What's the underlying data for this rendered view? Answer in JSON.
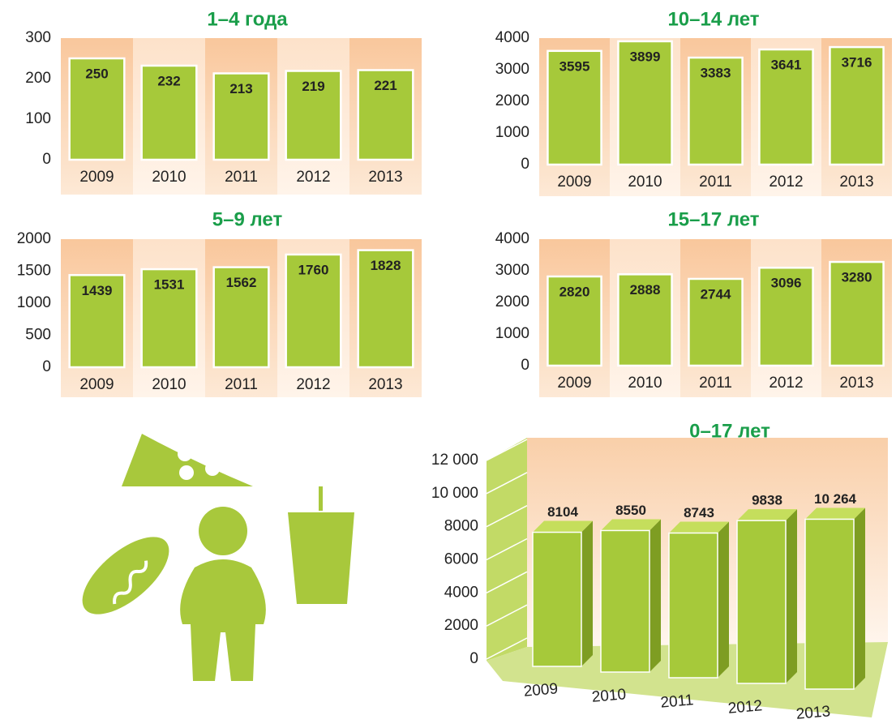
{
  "chart_data": [
    {
      "type": "bar",
      "title": "1–4 года",
      "categories": [
        "2009",
        "2010",
        "2011",
        "2012",
        "2013"
      ],
      "values": [
        250,
        232,
        213,
        219,
        221
      ],
      "color": "#a6c93a",
      "ylim": [
        0,
        300
      ],
      "yticks": [
        0,
        100,
        200,
        300
      ]
    },
    {
      "type": "bar",
      "title": "10–14 лет",
      "categories": [
        "2009",
        "2010",
        "2011",
        "2012",
        "2013"
      ],
      "values": [
        3595,
        3899,
        3383,
        3641,
        3716
      ],
      "color": "#a6c93a",
      "ylim": [
        0,
        4000
      ],
      "yticks": [
        0,
        1000,
        2000,
        3000,
        4000
      ]
    },
    {
      "type": "bar",
      "title": "5–9 лет",
      "categories": [
        "2009",
        "2010",
        "2011",
        "2012",
        "2013"
      ],
      "values": [
        1439,
        1531,
        1562,
        1760,
        1828
      ],
      "color": "#a6c93a",
      "ylim": [
        0,
        2000
      ],
      "yticks": [
        0,
        500,
        1000,
        1500,
        2000
      ]
    },
    {
      "type": "bar",
      "title": "15–17 лет",
      "categories": [
        "2009",
        "2010",
        "2011",
        "2012",
        "2013"
      ],
      "values": [
        2820,
        2888,
        2744,
        3096,
        3280
      ],
      "color": "#a6c93a",
      "ylim": [
        0,
        4000
      ],
      "yticks": [
        0,
        1000,
        2000,
        3000,
        4000
      ]
    },
    {
      "type": "bar3d",
      "title": "0–17 лет",
      "categories": [
        "2009",
        "2010",
        "2011",
        "2012",
        "2013"
      ],
      "values": [
        8104,
        8550,
        8743,
        9838,
        10264
      ],
      "value_labels": [
        "8104",
        "8550",
        "8743",
        "9838",
        "10 264"
      ],
      "color": "#a6c93a",
      "ylim": [
        0,
        12000
      ],
      "yticks": [
        0,
        2000,
        4000,
        6000,
        8000,
        {
          "value": 10000,
          "label": "10 000"
        },
        {
          "value": 12000,
          "label": "12 000"
        }
      ]
    }
  ]
}
